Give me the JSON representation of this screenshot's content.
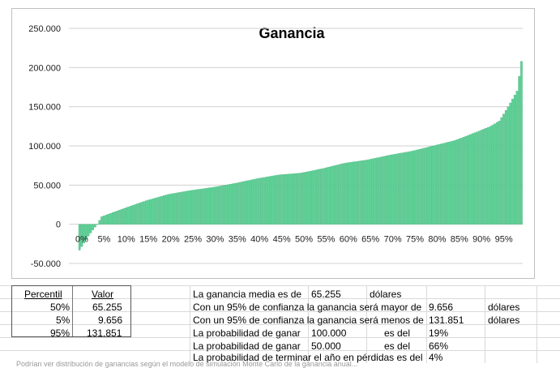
{
  "chart_data": {
    "type": "bar",
    "title": "Ganancia",
    "xlabel": "",
    "ylabel": "",
    "ylim": [
      -50000,
      250000
    ],
    "ytick_values": [
      250000,
      200000,
      150000,
      100000,
      50000,
      0,
      -50000
    ],
    "ytick_labels": [
      "250.000",
      "200.000",
      "150.000",
      "100.000",
      "50.000",
      "0",
      "-50.000"
    ],
    "xtick_labels": [
      "0%",
      "5%",
      "10%",
      "15%",
      "20%",
      "25%",
      "30%",
      "35%",
      "40%",
      "45%",
      "50%",
      "55%",
      "60%",
      "65%",
      "70%",
      "75%",
      "80%",
      "85%",
      "90%",
      "95%"
    ],
    "bar_color": "#5fd197",
    "bar_edge_color": "#3fae76",
    "n_bars": 200,
    "percentile_anchors": {
      "percentiles": [
        0,
        2,
        4,
        5,
        10,
        15,
        20,
        25,
        30,
        35,
        40,
        45,
        50,
        55,
        60,
        65,
        70,
        75,
        80,
        85,
        90,
        93,
        95,
        97,
        99,
        100
      ],
      "values": [
        -33000,
        -15000,
        0,
        9656,
        20000,
        30000,
        38000,
        43000,
        47000,
        52000,
        58000,
        63000,
        65255,
        71000,
        78000,
        82000,
        88000,
        93000,
        100000,
        107000,
        118000,
        125000,
        131851,
        150000,
        170000,
        208000
      ]
    }
  },
  "summary_table": {
    "header_percentil": "Percentil",
    "header_valor": "Valor",
    "rows": [
      {
        "p": "50%",
        "v": "65.255"
      },
      {
        "p": "5%",
        "v": "9.656"
      },
      {
        "p": "95%",
        "v": "131.851"
      }
    ]
  },
  "statements": {
    "mean_label": "La ganancia media es de",
    "mean_value": "65.255",
    "mean_unit": "dólares",
    "greater_label": "Con un 95% de confianza la ganancia será mayor de",
    "greater_value": "9.656",
    "greater_unit": "dólares",
    "less_label": "Con un 95% de confianza la ganancia será menos de",
    "less_value": "131.851",
    "less_unit": "dólares",
    "prob_100_label": "La probabilidad de ganar",
    "prob_100_amount": "100.000",
    "prob_100_es": "es del",
    "prob_100_pct": "19%",
    "prob_50_label": "La probabilidad de ganar",
    "prob_50_amount": "50.000",
    "prob_50_es": "es del",
    "prob_50_pct": "66%",
    "loss_label": "La probabilidad de terminar el año en pérdidas es del",
    "loss_pct": "4%"
  },
  "footer": "Podrían ver distribución de ganancias según el modelo de simulación Monte Carlo de la ganancia anual..."
}
